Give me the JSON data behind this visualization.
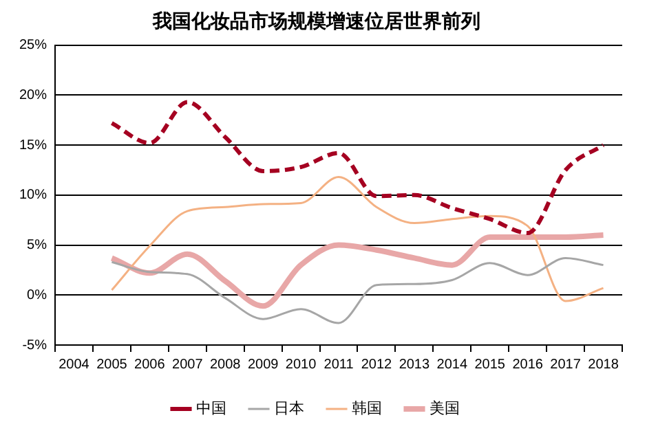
{
  "chart_data": {
    "type": "line",
    "title": "我国化妆品市场规模增速位居世界前列",
    "categories": [
      "2004",
      "2005",
      "2006",
      "2007",
      "2008",
      "2009",
      "2010",
      "2011",
      "2012",
      "2013",
      "2014",
      "2015",
      "2016",
      "2017",
      "2018"
    ],
    "series": [
      {
        "name": "中国",
        "color": "#a50021",
        "line_style": "dashed",
        "values": [
          null,
          17.2,
          15.2,
          19.3,
          15.8,
          12.4,
          12.8,
          14.2,
          9.9,
          10.0,
          8.7,
          7.6,
          6.2,
          12.5,
          15.0
        ]
      },
      {
        "name": "美国",
        "color": "#e8a7a7",
        "values": [
          null,
          3.7,
          2.2,
          4.1,
          1.4,
          -1.1,
          3.0,
          5.0,
          4.5,
          3.7,
          3.0,
          5.8,
          5.8,
          5.8,
          6.0
        ]
      },
      {
        "name": "日本",
        "color": "#a6a6a6",
        "values": [
          null,
          3.3,
          2.3,
          2.1,
          -0.3,
          -2.4,
          -1.4,
          -2.8,
          1.0,
          1.1,
          1.5,
          3.2,
          2.0,
          3.7,
          3.0
        ]
      },
      {
        "name": "韩国",
        "color": "#f4b183",
        "values": [
          null,
          0.5,
          4.9,
          8.4,
          8.8,
          9.1,
          9.2,
          11.8,
          8.8,
          7.2,
          7.6,
          7.9,
          6.9,
          -0.6,
          0.7
        ]
      }
    ],
    "ylim": [
      -5,
      25
    ],
    "yticks": [
      {
        "value": -5,
        "label": "-5%"
      },
      {
        "value": 0,
        "label": "0%"
      },
      {
        "value": 5,
        "label": "5%"
      },
      {
        "value": 10,
        "label": "10%"
      },
      {
        "value": 15,
        "label": "15%"
      },
      {
        "value": 20,
        "label": "20%"
      },
      {
        "value": 25,
        "label": "25%"
      }
    ],
    "grid": "y",
    "legend": "bottom",
    "marker": "none",
    "line_style": "solid"
  }
}
